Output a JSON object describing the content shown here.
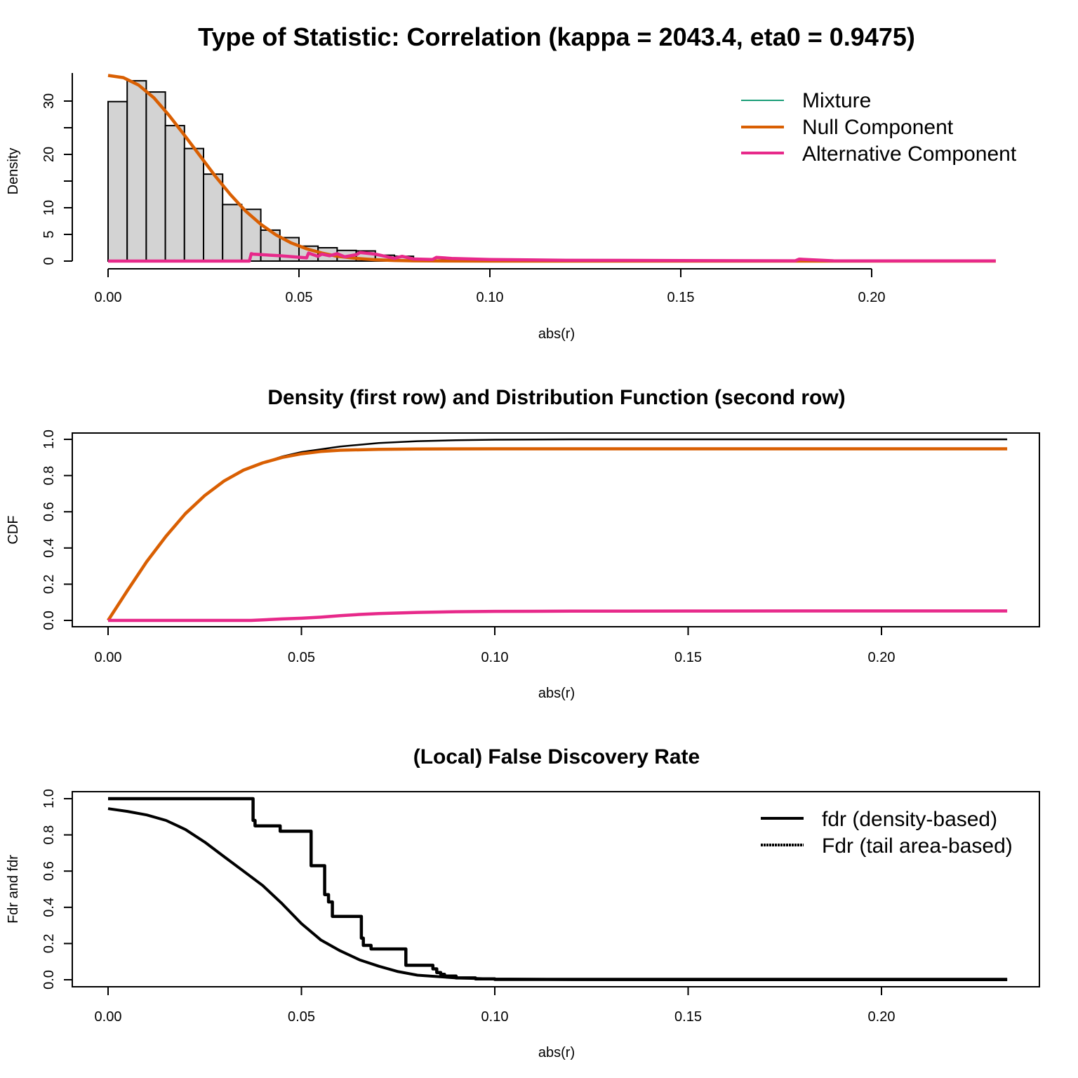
{
  "colors": {
    "mixture": "#1b9e77",
    "null": "#d95f02",
    "alternative": "#e7298a",
    "hist_fill": "#d3d3d3",
    "black": "#000000"
  },
  "chart_data": [
    {
      "id": "density",
      "type": "bar",
      "title": "Type of Statistic: Correlation (kappa = 2043.4, eta0 = 0.9475)",
      "xlabel": "abs(r)",
      "ylabel": "Density",
      "xlim": [
        0,
        0.235
      ],
      "ylim": [
        0,
        35
      ],
      "xticks": [
        0,
        0.05,
        0.1,
        0.15,
        0.2
      ],
      "xtick_labels": [
        "0.00",
        "0.05",
        "0.10",
        "0.15",
        "0.20"
      ],
      "yticks": [
        0,
        5,
        10,
        20,
        30
      ],
      "ytick_labels": [
        "0",
        "5",
        "10",
        "20",
        "30"
      ],
      "ytick_minor": [
        25,
        15
      ],
      "box": false,
      "legend_position": "top-right",
      "legend": [
        "Mixture",
        "Null Component",
        "Alternative Component"
      ],
      "histogram": {
        "bin_width": 0.005,
        "bin_start": 0,
        "values": [
          29.9,
          33.8,
          31.7,
          25.4,
          21.1,
          16.3,
          10.6,
          9.7,
          5.8,
          4.4,
          2.8,
          2.5,
          2.0,
          1.9,
          1.1,
          0.9,
          0.3,
          0.2,
          0.1,
          0.1
        ]
      },
      "series": [
        {
          "name": "Null Component",
          "color_key": "null",
          "x": [
            0,
            0.004,
            0.008,
            0.012,
            0.016,
            0.02,
            0.024,
            0.028,
            0.032,
            0.036,
            0.04,
            0.044,
            0.048,
            0.052,
            0.056,
            0.06,
            0.065,
            0.07,
            0.075,
            0.08,
            0.09,
            0.1,
            0.12,
            0.15,
            0.2,
            0.2325
          ],
          "y": [
            34.8,
            34.4,
            33.0,
            30.6,
            27.3,
            23.6,
            19.8,
            16.0,
            12.5,
            9.4,
            6.9,
            4.9,
            3.4,
            2.3,
            1.5,
            0.9,
            0.5,
            0.25,
            0.12,
            0.05,
            0.01,
            0,
            0,
            0,
            0,
            0
          ]
        },
        {
          "name": "Alternative Component",
          "color_key": "alternative",
          "x": [
            0,
            0.037,
            0.0375,
            0.038,
            0.045,
            0.052,
            0.0525,
            0.055,
            0.056,
            0.058,
            0.06,
            0.062,
            0.065,
            0.066,
            0.07,
            0.075,
            0.077,
            0.08,
            0.085,
            0.086,
            0.09,
            0.1,
            0.12,
            0.15,
            0.18,
            0.181,
            0.19,
            0.2,
            0.2325
          ],
          "y": [
            0,
            0,
            1.4,
            1.3,
            1.0,
            0.6,
            1.5,
            0.9,
            1.3,
            1.0,
            1.4,
            0.8,
            1.2,
            1.6,
            1.3,
            0.5,
            0.9,
            0.4,
            0.3,
            0.7,
            0.5,
            0.3,
            0.15,
            0.1,
            0.05,
            0.35,
            0.05,
            0.02,
            0.02
          ]
        }
      ]
    },
    {
      "id": "cdf",
      "type": "line",
      "title": "Density (first row) and Distribution Function (second row)",
      "xlabel": "abs(r)",
      "ylabel": "CDF",
      "xlim": [
        0,
        0.235
      ],
      "ylim": [
        0,
        1
      ],
      "xticks": [
        0,
        0.05,
        0.1,
        0.15,
        0.2
      ],
      "xtick_labels": [
        "0.00",
        "0.05",
        "0.10",
        "0.15",
        "0.20"
      ],
      "yticks": [
        0,
        0.2,
        0.4,
        0.6,
        0.8,
        1.0
      ],
      "ytick_labels": [
        "0.0",
        "0.2",
        "0.4",
        "0.6",
        "0.8",
        "1.0"
      ],
      "box": true,
      "series": [
        {
          "name": "Mixture",
          "color_key": "black",
          "x": [
            0,
            0.005,
            0.01,
            0.015,
            0.02,
            0.025,
            0.03,
            0.035,
            0.04,
            0.045,
            0.05,
            0.06,
            0.07,
            0.08,
            0.09,
            0.1,
            0.12,
            0.15,
            0.2,
            0.2325
          ],
          "y": [
            0,
            0.16,
            0.32,
            0.46,
            0.59,
            0.69,
            0.77,
            0.83,
            0.87,
            0.905,
            0.93,
            0.96,
            0.98,
            0.99,
            0.995,
            0.998,
            1.0,
            1.0,
            1.0,
            1.0
          ]
        },
        {
          "name": "Null Component",
          "color_key": "null",
          "x": [
            0,
            0.005,
            0.01,
            0.015,
            0.02,
            0.025,
            0.03,
            0.035,
            0.04,
            0.045,
            0.05,
            0.055,
            0.06,
            0.07,
            0.08,
            0.1,
            0.15,
            0.2,
            0.2325
          ],
          "y": [
            0,
            0.165,
            0.325,
            0.465,
            0.59,
            0.69,
            0.77,
            0.83,
            0.87,
            0.9,
            0.92,
            0.933,
            0.94,
            0.945,
            0.947,
            0.9475,
            0.9475,
            0.9475,
            0.9475
          ]
        },
        {
          "name": "Alternative Component",
          "color_key": "alternative",
          "x": [
            0,
            0.037,
            0.04,
            0.045,
            0.05,
            0.055,
            0.06,
            0.065,
            0.07,
            0.08,
            0.09,
            0.1,
            0.12,
            0.15,
            0.2,
            0.2325
          ],
          "y": [
            0,
            0,
            0.003,
            0.008,
            0.012,
            0.018,
            0.026,
            0.033,
            0.038,
            0.044,
            0.048,
            0.05,
            0.051,
            0.052,
            0.0525,
            0.0525
          ]
        }
      ]
    },
    {
      "id": "fdr",
      "type": "line",
      "title": "(Local) False Discovery Rate",
      "xlabel": "abs(r)",
      "ylabel": "Fdr and fdr",
      "xlim": [
        0,
        0.235
      ],
      "ylim": [
        0,
        1
      ],
      "xticks": [
        0,
        0.05,
        0.1,
        0.15,
        0.2
      ],
      "xtick_labels": [
        "0.00",
        "0.05",
        "0.10",
        "0.15",
        "0.20"
      ],
      "yticks": [
        0,
        0.2,
        0.4,
        0.6,
        0.8,
        1.0
      ],
      "ytick_labels": [
        "0.0",
        "0.2",
        "0.4",
        "0.6",
        "0.8",
        "1.0"
      ],
      "box": true,
      "legend_position": "top-right",
      "legend": [
        "fdr (density-based)",
        "Fdr (tail area-based)"
      ],
      "series": [
        {
          "name": "fdr (density-based)",
          "color_key": "black",
          "x": [
            0,
            0.0375,
            0.0375,
            0.038,
            0.038,
            0.0445,
            0.0445,
            0.0525,
            0.0525,
            0.0525,
            0.0525,
            0.056,
            0.056,
            0.057,
            0.057,
            0.058,
            0.058,
            0.06,
            0.06,
            0.0655,
            0.0655,
            0.066,
            0.066,
            0.068,
            0.068,
            0.077,
            0.077,
            0.084,
            0.084,
            0.085,
            0.085,
            0.086,
            0.086,
            0.087,
            0.087,
            0.09,
            0.09,
            0.095,
            0.095,
            0.1,
            0.1,
            0.2325
          ],
          "y": [
            1.0,
            1.0,
            0.88,
            0.88,
            0.85,
            0.85,
            0.82,
            0.82,
            0.82,
            0.82,
            0.63,
            0.63,
            0.47,
            0.47,
            0.43,
            0.43,
            0.35,
            0.35,
            0.35,
            0.35,
            0.23,
            0.23,
            0.19,
            0.19,
            0.17,
            0.17,
            0.08,
            0.08,
            0.06,
            0.06,
            0.04,
            0.04,
            0.03,
            0.03,
            0.02,
            0.02,
            0.01,
            0.01,
            0.005,
            0.005,
            0.002,
            0.002
          ]
        },
        {
          "name": "Fdr (tail area-based)",
          "color_key": "black",
          "x": [
            0,
            0.005,
            0.01,
            0.015,
            0.02,
            0.025,
            0.03,
            0.035,
            0.04,
            0.045,
            0.05,
            0.055,
            0.06,
            0.065,
            0.07,
            0.075,
            0.08,
            0.09,
            0.1,
            0.12,
            0.15,
            0.2,
            0.2325
          ],
          "y": [
            0.945,
            0.93,
            0.91,
            0.88,
            0.83,
            0.76,
            0.68,
            0.6,
            0.52,
            0.42,
            0.31,
            0.22,
            0.16,
            0.11,
            0.075,
            0.045,
            0.025,
            0.01,
            0.004,
            0.001,
            0,
            0,
            0
          ]
        }
      ]
    }
  ]
}
